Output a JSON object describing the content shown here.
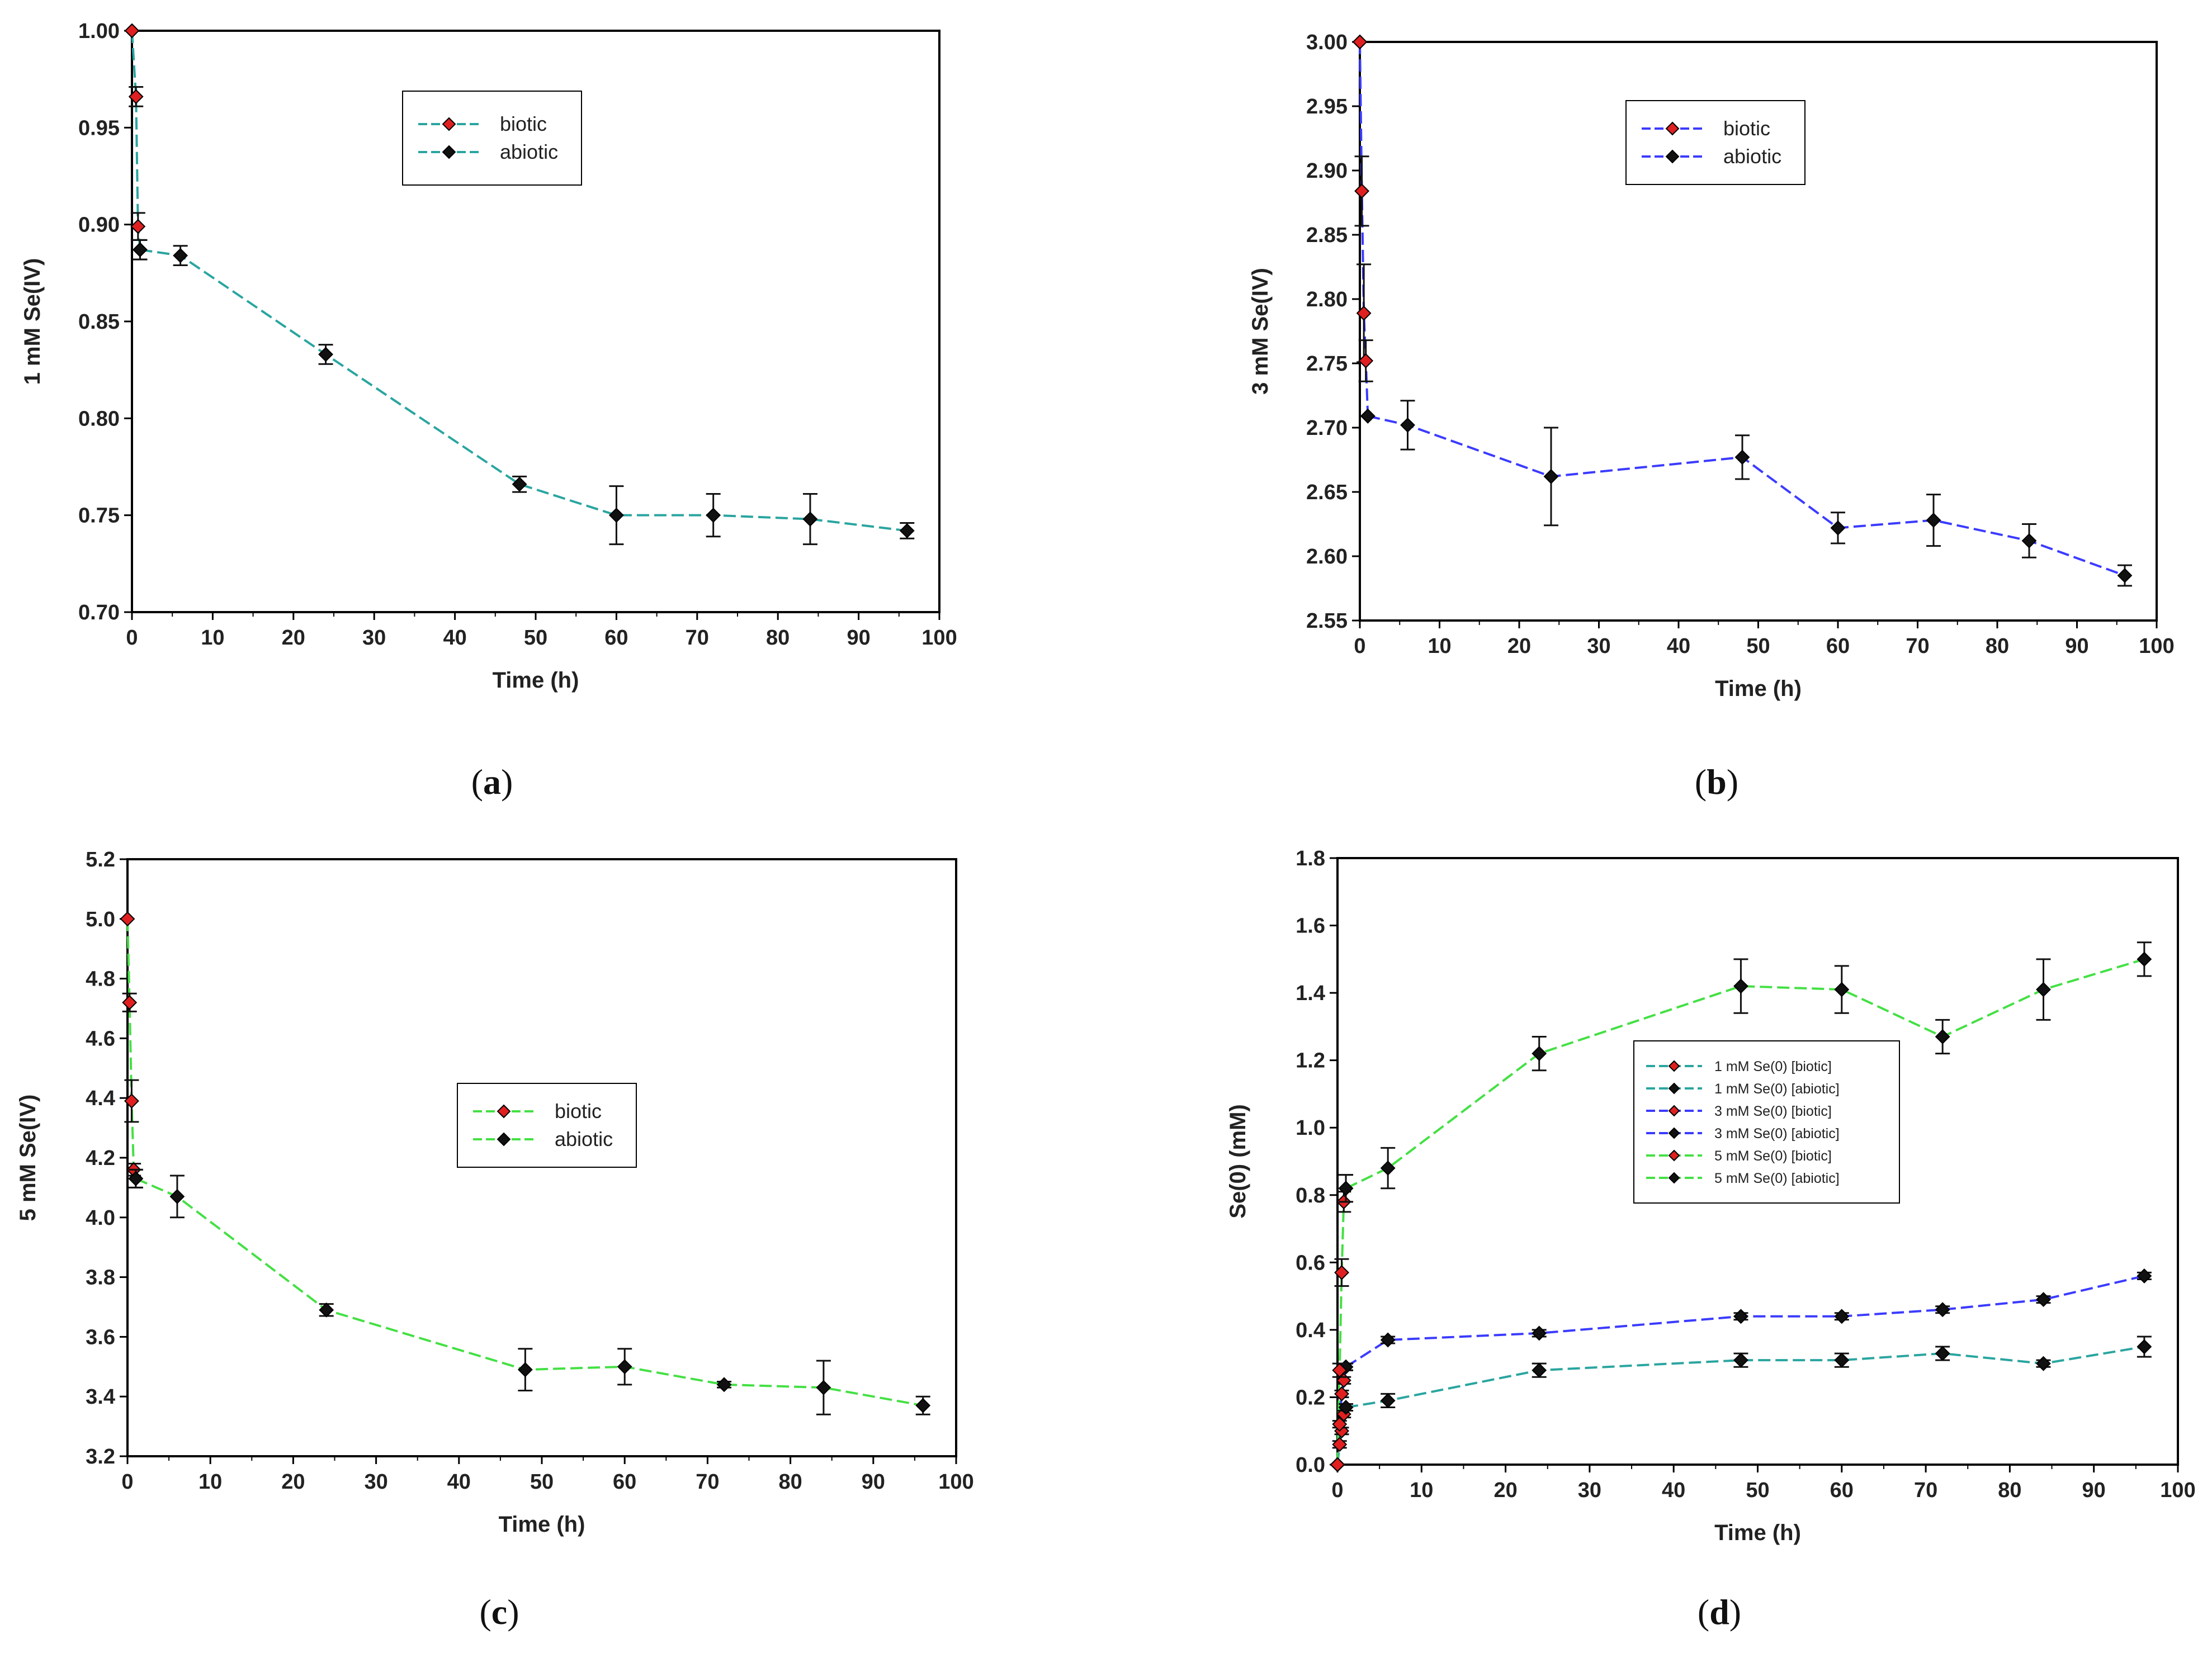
{
  "chart_data": [
    {
      "type": "line",
      "panel_label": "a",
      "xlabel": "Time (h)",
      "ylabel": "1 mM Se(IV)",
      "xlim": [
        0,
        100
      ],
      "ylim": [
        0.7,
        1.0
      ],
      "xticks": [
        "0",
        "10",
        "20",
        "30",
        "40",
        "50",
        "60",
        "70",
        "80",
        "90",
        "100"
      ],
      "yticks": [
        "0.70",
        "0.75",
        "0.80",
        "0.85",
        "0.90",
        "0.95",
        "1.00"
      ],
      "legend_position": "top-center",
      "series": [
        {
          "name": "biotic",
          "color": "#2aa5a0",
          "marker_color": "#e02020",
          "x": [
            0,
            0.5,
            0.75,
            1
          ],
          "y": [
            1.0,
            0.966,
            0.899,
            0.887
          ],
          "err": [
            0,
            0.005,
            0.007,
            0.005
          ]
        },
        {
          "name": "abiotic",
          "color": "#2aa5a0",
          "marker_color": "#111111",
          "x": [
            1,
            6,
            24,
            48,
            60,
            72,
            84,
            96
          ],
          "y": [
            0.887,
            0.884,
            0.833,
            0.766,
            0.75,
            0.75,
            0.748,
            0.742
          ],
          "err": [
            0.005,
            0.005,
            0.005,
            0.004,
            0.015,
            0.011,
            0.013,
            0.004
          ]
        }
      ]
    },
    {
      "type": "line",
      "panel_label": "b",
      "xlabel": "Time (h)",
      "ylabel": "3 mM Se(IV)",
      "xlim": [
        0,
        100
      ],
      "ylim": [
        2.55,
        3.0
      ],
      "xticks": [
        "0",
        "10",
        "20",
        "30",
        "40",
        "50",
        "60",
        "70",
        "80",
        "90",
        "100"
      ],
      "yticks": [
        "2.55",
        "2.60",
        "2.65",
        "2.70",
        "2.75",
        "2.80",
        "2.85",
        "2.90",
        "2.95",
        "3.00"
      ],
      "legend_position": "top-center",
      "series": [
        {
          "name": "biotic",
          "color": "#3b3bff",
          "marker_color": "#e02020",
          "x": [
            0,
            0.25,
            0.5,
            0.75,
            1
          ],
          "y": [
            3.0,
            2.884,
            2.789,
            2.752,
            2.709
          ],
          "err": [
            0,
            0.027,
            0.038,
            0.016,
            0
          ]
        },
        {
          "name": "abiotic",
          "color": "#3b3bff",
          "marker_color": "#111111",
          "x": [
            1,
            6,
            24,
            48,
            60,
            72,
            84,
            96
          ],
          "y": [
            2.709,
            2.702,
            2.662,
            2.677,
            2.622,
            2.628,
            2.612,
            2.585
          ],
          "err": [
            0,
            0.019,
            0.038,
            0.017,
            0.012,
            0.02,
            0.013,
            0.008
          ]
        }
      ]
    },
    {
      "type": "line",
      "panel_label": "c",
      "xlabel": "Time (h)",
      "ylabel": "5 mM Se(IV)",
      "xlim": [
        0,
        100
      ],
      "ylim": [
        3.2,
        5.2
      ],
      "xticks": [
        "0",
        "10",
        "20",
        "30",
        "40",
        "50",
        "60",
        "70",
        "80",
        "90",
        "100"
      ],
      "yticks": [
        "3.2",
        "3.4",
        "3.6",
        "3.8",
        "4.0",
        "4.2",
        "4.4",
        "4.6",
        "4.8",
        "5.0",
        "5.2"
      ],
      "legend_position": "center",
      "series": [
        {
          "name": "biotic",
          "color": "#44e044",
          "marker_color": "#e02020",
          "x": [
            0,
            0.25,
            0.5,
            0.75,
            1
          ],
          "y": [
            5.0,
            4.72,
            4.39,
            4.16,
            4.13
          ],
          "err": [
            0,
            0.03,
            0.07,
            0.02,
            0.03
          ]
        },
        {
          "name": "abiotic",
          "color": "#44e044",
          "marker_color": "#111111",
          "x": [
            1,
            6,
            24,
            48,
            60,
            72,
            84,
            96
          ],
          "y": [
            4.13,
            4.07,
            3.69,
            3.49,
            3.5,
            3.44,
            3.43,
            3.37
          ],
          "err": [
            0.03,
            0.07,
            0.02,
            0.07,
            0.06,
            0.01,
            0.09,
            0.03
          ]
        }
      ]
    },
    {
      "type": "line",
      "panel_label": "d",
      "xlabel": "Time (h)",
      "ylabel": "Se(0) (mM)",
      "xlim": [
        0,
        100
      ],
      "ylim": [
        0.0,
        1.8
      ],
      "xticks": [
        "0",
        "10",
        "20",
        "30",
        "40",
        "50",
        "60",
        "70",
        "80",
        "90",
        "100"
      ],
      "yticks": [
        "0.0",
        "0.2",
        "0.4",
        "0.6",
        "0.8",
        "1.0",
        "1.2",
        "1.4",
        "1.6",
        "1.8"
      ],
      "legend_position": "center-left",
      "series": [
        {
          "name": "1 mM Se(0) [biotic]",
          "color": "#2aa5a0",
          "marker_color": "#e02020",
          "x": [
            0,
            0.25,
            0.5,
            0.75,
            1
          ],
          "y": [
            0.0,
            0.06,
            0.1,
            0.15,
            0.17
          ],
          "err": [
            0,
            0.01,
            0.01,
            0.01,
            0.01
          ]
        },
        {
          "name": "1 mM Se(0) [abiotic]",
          "color": "#2aa5a0",
          "marker_color": "#111111",
          "x": [
            1,
            6,
            24,
            48,
            60,
            72,
            84,
            96
          ],
          "y": [
            0.17,
            0.19,
            0.28,
            0.31,
            0.31,
            0.33,
            0.3,
            0.35
          ],
          "err": [
            0.01,
            0.02,
            0.02,
            0.02,
            0.02,
            0.02,
            0.01,
            0.03
          ]
        },
        {
          "name": "3 mM Se(0) [biotic]",
          "color": "#3b3bff",
          "marker_color": "#e02020",
          "x": [
            0,
            0.25,
            0.5,
            0.75,
            1
          ],
          "y": [
            0.0,
            0.12,
            0.21,
            0.25,
            0.29
          ],
          "err": [
            0,
            0.01,
            0.01,
            0.01,
            0.01
          ]
        },
        {
          "name": "3 mM Se(0) [abiotic]",
          "color": "#3b3bff",
          "marker_color": "#111111",
          "x": [
            1,
            6,
            24,
            48,
            60,
            72,
            84,
            96
          ],
          "y": [
            0.29,
            0.37,
            0.39,
            0.44,
            0.44,
            0.46,
            0.49,
            0.56
          ],
          "err": [
            0.01,
            0.01,
            0.01,
            0.01,
            0.01,
            0.01,
            0.01,
            0.01
          ]
        },
        {
          "name": "5 mM Se(0) [biotic]",
          "color": "#44e044",
          "marker_color": "#e02020",
          "x": [
            0,
            0.25,
            0.5,
            0.75,
            1
          ],
          "y": [
            0.0,
            0.28,
            0.57,
            0.78,
            0.82
          ],
          "err": [
            0,
            0.02,
            0.04,
            0.03,
            0.04
          ]
        },
        {
          "name": "5 mM Se(0) [abiotic]",
          "color": "#44e044",
          "marker_color": "#111111",
          "x": [
            1,
            6,
            24,
            48,
            60,
            72,
            84,
            96
          ],
          "y": [
            0.82,
            0.88,
            1.22,
            1.42,
            1.41,
            1.27,
            1.41,
            1.5
          ],
          "err": [
            0.04,
            0.06,
            0.05,
            0.08,
            0.07,
            0.05,
            0.09,
            0.05
          ]
        }
      ]
    }
  ]
}
